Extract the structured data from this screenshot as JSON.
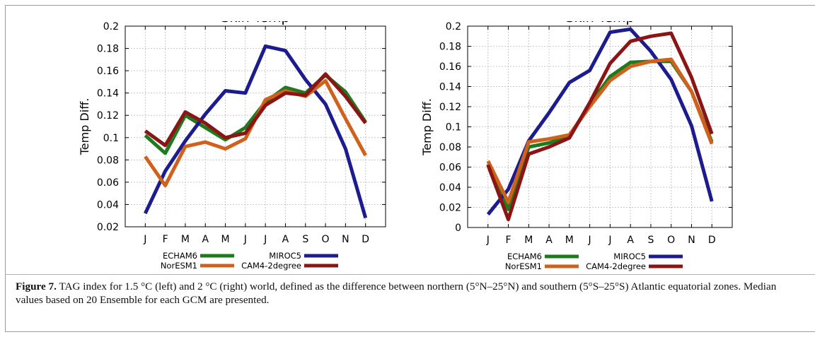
{
  "charts": [
    {
      "title": "Skin Temp",
      "ylabel": "Temp Diff.",
      "legend_rows": [
        [
          "ECHAM6",
          "MIROC5"
        ],
        [
          "NorESM1",
          "CAM4-2degree"
        ]
      ]
    },
    {
      "title": "Skin Temp",
      "ylabel": "Temp Diff.",
      "legend_rows": [
        [
          "ECHAM6",
          "MIROC5"
        ],
        [
          "NorESM1",
          "CAM4-2degree"
        ]
      ]
    }
  ],
  "caption": {
    "label": "Figure 7.",
    "text": "TAG index for 1.5 °C (left) and 2 °C (right) world, defined as the difference between northern (5°N–25°N) and southern (5°S–25°S) Atlantic equatorial zones. Median values based on 20 Ensemble for each GCM are presented."
  },
  "chart_data": [
    {
      "type": "line",
      "title": "Skin Temp",
      "xlabel": "",
      "ylabel": "Temp Diff.",
      "x": [
        "J",
        "F",
        "M",
        "A",
        "M",
        "J",
        "J",
        "A",
        "S",
        "O",
        "N",
        "D"
      ],
      "ylim": [
        0.02,
        0.2
      ],
      "yticks": [
        0.02,
        0.04,
        0.06,
        0.08,
        0.1,
        0.12,
        0.14,
        0.16,
        0.18,
        0.2
      ],
      "grid": true,
      "legend_position": "bottom",
      "series": [
        {
          "name": "ECHAM6",
          "color": "#1e7a1e",
          "values": [
            0.102,
            0.086,
            0.12,
            0.109,
            0.098,
            0.109,
            0.132,
            0.145,
            0.14,
            0.156,
            0.141,
            0.114
          ]
        },
        {
          "name": "MIROC5",
          "color": "#1c1c8e",
          "values": [
            0.032,
            0.07,
            0.097,
            0.121,
            0.142,
            0.14,
            0.182,
            0.178,
            0.152,
            0.13,
            0.09,
            0.028
          ]
        },
        {
          "name": "NorESM1",
          "color": "#d0611c",
          "values": [
            0.083,
            0.057,
            0.092,
            0.096,
            0.09,
            0.099,
            0.134,
            0.142,
            0.137,
            0.151,
            0.117,
            0.084
          ]
        },
        {
          "name": "CAM4-2degree",
          "color": "#8b1414",
          "values": [
            0.106,
            0.093,
            0.123,
            0.113,
            0.1,
            0.104,
            0.129,
            0.14,
            0.138,
            0.157,
            0.137,
            0.113
          ]
        }
      ]
    },
    {
      "type": "line",
      "title": "Skin Temp",
      "xlabel": "",
      "ylabel": "Temp Diff.",
      "x": [
        "J",
        "F",
        "M",
        "A",
        "M",
        "J",
        "J",
        "A",
        "S",
        "O",
        "N",
        "D"
      ],
      "ylim": [
        0,
        0.2
      ],
      "yticks": [
        0,
        0.02,
        0.04,
        0.06,
        0.08,
        0.1,
        0.12,
        0.14,
        0.16,
        0.18,
        0.2
      ],
      "grid": true,
      "legend_position": "bottom",
      "series": [
        {
          "name": "ECHAM6",
          "color": "#1e7a1e",
          "values": [
            0.063,
            0.018,
            0.08,
            0.084,
            0.091,
            0.122,
            0.15,
            0.164,
            0.165,
            0.165,
            0.135,
            0.085
          ]
        },
        {
          "name": "MIROC5",
          "color": "#1c1c8e",
          "values": [
            0.013,
            0.038,
            0.086,
            0.114,
            0.144,
            0.156,
            0.194,
            0.197,
            0.175,
            0.147,
            0.101,
            0.026
          ]
        },
        {
          "name": "NorESM1",
          "color": "#d0611c",
          "values": [
            0.066,
            0.025,
            0.085,
            0.088,
            0.092,
            0.12,
            0.146,
            0.16,
            0.165,
            0.167,
            0.135,
            0.083
          ]
        },
        {
          "name": "CAM4-2degree",
          "color": "#8b1414",
          "values": [
            0.062,
            0.008,
            0.073,
            0.08,
            0.089,
            0.124,
            0.163,
            0.185,
            0.19,
            0.193,
            0.149,
            0.093
          ]
        }
      ]
    }
  ]
}
